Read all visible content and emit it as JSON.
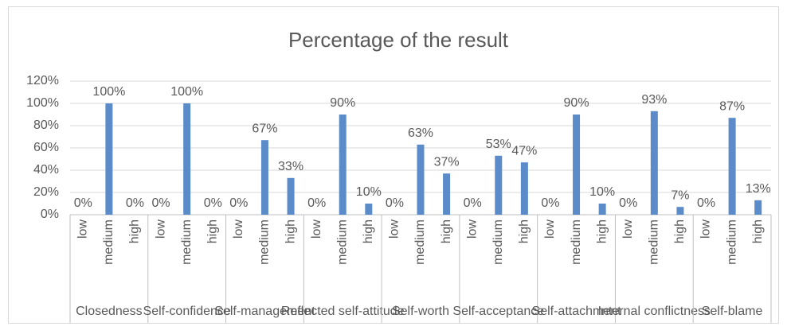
{
  "chart_data": {
    "type": "bar",
    "title": "Percentage of the result",
    "categories": [
      "low",
      "medium",
      "high"
    ],
    "groups": [
      {
        "name": "Closedness",
        "values": [
          0,
          100,
          0
        ],
        "value_labels": [
          "0%",
          "100%",
          "0%"
        ]
      },
      {
        "name": "Self-confidence",
        "values": [
          0,
          100,
          0
        ],
        "value_labels": [
          "0%",
          "100%",
          "0%"
        ]
      },
      {
        "name": "Self-management",
        "values": [
          0,
          67,
          33
        ],
        "value_labels": [
          "0%",
          "67%",
          "33%"
        ]
      },
      {
        "name": "Reflected self-attitude",
        "values": [
          0,
          90,
          10
        ],
        "value_labels": [
          "0%",
          "90%",
          "10%"
        ]
      },
      {
        "name": "Self-worth",
        "values": [
          0,
          63,
          37
        ],
        "value_labels": [
          "0%",
          "63%",
          "37%"
        ]
      },
      {
        "name": "Self-acceptance",
        "values": [
          0,
          53,
          47
        ],
        "value_labels": [
          "0%",
          "53%",
          "47%"
        ]
      },
      {
        "name": "Self-attachment",
        "values": [
          0,
          90,
          10
        ],
        "value_labels": [
          "0%",
          "90%",
          "10%"
        ]
      },
      {
        "name": "Internal conflictness",
        "values": [
          0,
          93,
          7
        ],
        "value_labels": [
          "0%",
          "93%",
          "7%"
        ]
      },
      {
        "name": "Self-blame",
        "values": [
          0,
          87,
          13
        ],
        "value_labels": [
          "0%",
          "87%",
          "13%"
        ]
      }
    ],
    "color": "#5b8bc9",
    "ylim": [
      0,
      120
    ],
    "yticks": [
      {
        "value": 0,
        "label": "0%"
      },
      {
        "value": 20,
        "label": "20%"
      },
      {
        "value": 40,
        "label": "40%"
      },
      {
        "value": 60,
        "label": "60%"
      },
      {
        "value": 80,
        "label": "80%"
      },
      {
        "value": 100,
        "label": "100%"
      },
      {
        "value": 120,
        "label": "120%"
      }
    ],
    "grid": true
  }
}
